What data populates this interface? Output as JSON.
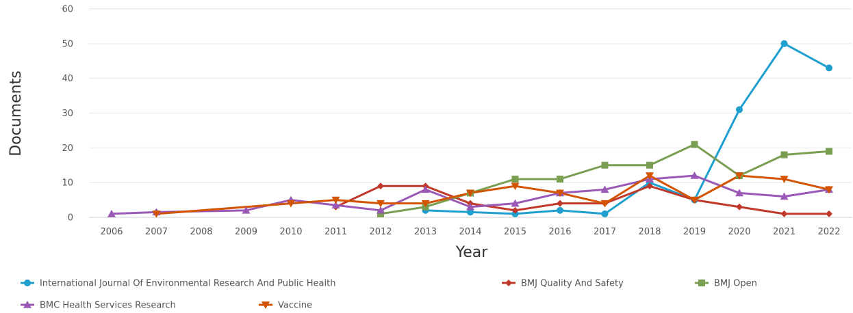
{
  "chart_data": {
    "type": "line",
    "xlabel": "Year",
    "ylabel": "Documents",
    "ylim": [
      0,
      60
    ],
    "yticks": [
      0,
      10,
      20,
      30,
      40,
      50,
      60
    ],
    "categories": [
      "2006",
      "2007",
      "2008",
      "2009",
      "2010",
      "2011",
      "2012",
      "2013",
      "2014",
      "2015",
      "2016",
      "2017",
      "2018",
      "2019",
      "2020",
      "2021",
      "2022"
    ],
    "grid": "horizontal",
    "legend_position": "bottom",
    "series": [
      {
        "name": "International Journal Of Environmental Research And Public Health",
        "color": "#1f9fce",
        "marker": "circle",
        "x": [
          "2013",
          "2014",
          "2015",
          "2016",
          "2017",
          "2018",
          "2019",
          "2020",
          "2021",
          "2022"
        ],
        "values": [
          2,
          1.5,
          1,
          2,
          1,
          10,
          5,
          31,
          50,
          43
        ]
      },
      {
        "name": "BMJ Quality And Safety",
        "color": "#c0392b",
        "marker": "diamond",
        "x": [
          "2011",
          "2012",
          "2013",
          "2014",
          "2015",
          "2016",
          "2017",
          "2018",
          "2019",
          "2020",
          "2021",
          "2022"
        ],
        "values": [
          3,
          9,
          9,
          4,
          2,
          4,
          4,
          9,
          5,
          3,
          1,
          1
        ]
      },
      {
        "name": "BMJ Open",
        "color": "#7a9e52",
        "marker": "square",
        "x": [
          "2012",
          "2013",
          "2014",
          "2015",
          "2016",
          "2017",
          "2018",
          "2019",
          "2020",
          "2021",
          "2022"
        ],
        "values": [
          1,
          3,
          7,
          11,
          11,
          15,
          15,
          21,
          12,
          18,
          19
        ]
      },
      {
        "name": "BMC Health Services Research",
        "color": "#9b59b6",
        "marker": "triangle-up",
        "x": [
          "2006",
          "2007",
          "2009",
          "2010",
          "2011",
          "2012",
          "2013",
          "2014",
          "2015",
          "2016",
          "2017",
          "2018",
          "2019",
          "2020",
          "2021",
          "2022"
        ],
        "values": [
          1,
          1.5,
          2,
          5,
          3.5,
          2,
          8,
          3,
          4,
          7,
          8,
          11,
          12,
          7,
          6,
          8
        ]
      },
      {
        "name": "Vaccine",
        "color": "#d35400",
        "marker": "triangle-down",
        "x": [
          "2007",
          "2010",
          "2011",
          "2012",
          "2013",
          "2014",
          "2015",
          "2016",
          "2017",
          "2018",
          "2019",
          "2020",
          "2021",
          "2022"
        ],
        "values": [
          1,
          4,
          5,
          4,
          4,
          7,
          9,
          7,
          4,
          12,
          5,
          12,
          11,
          8
        ]
      }
    ]
  }
}
